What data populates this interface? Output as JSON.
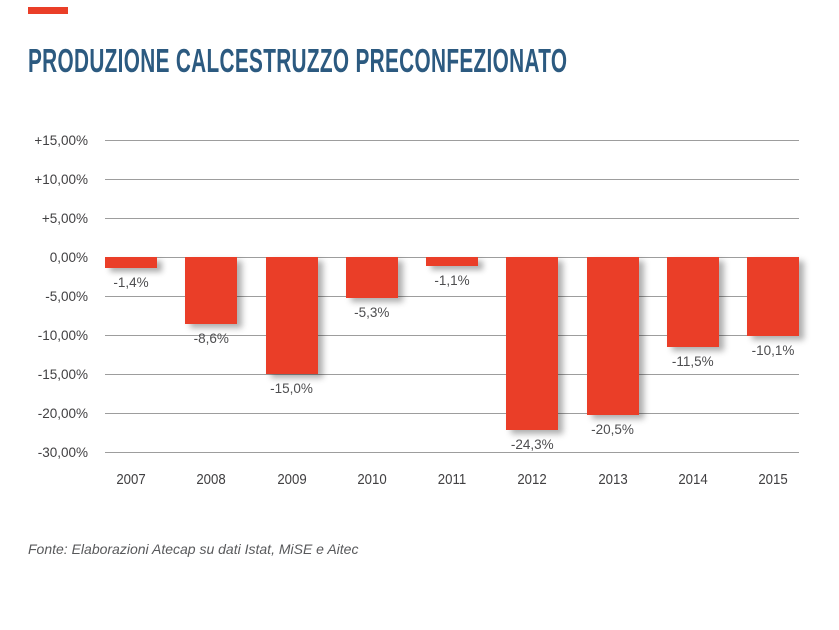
{
  "page": {
    "title": "PRODUZIONE CALCESTRUZZO PRECONFEZIONATO",
    "source_note": "Fonte: Elaborazioni Atecap su dati Istat, MiSE e Aitec",
    "title_color": "#2c5a80",
    "accent_color": "#ea3e28"
  },
  "chart_data": {
    "type": "bar",
    "title": "PRODUZIONE CALCESTRUZZO PRECONFEZIONATO",
    "categories": [
      "2007",
      "2008",
      "2009",
      "2010",
      "2011",
      "2012",
      "2013",
      "2014",
      "2015"
    ],
    "values": [
      -1.4,
      -8.6,
      -15.0,
      -5.3,
      -1.1,
      -24.3,
      -20.5,
      -11.5,
      -10.1
    ],
    "data_labels": [
      "-1,4%",
      "-8,6%",
      "-15,0%",
      "-5,3%",
      "-1,1%",
      "-24,3%",
      "-20,5%",
      "-11,5%",
      "-10,1%"
    ],
    "ytick_labels": [
      "+15,00%",
      "+10,00%",
      "+5,00%",
      "0,00%",
      "-5,00%",
      "-10,00%",
      "-15,00%",
      "-20,00%",
      "-30,00%"
    ],
    "ytick_values": [
      15,
      10,
      5,
      0,
      -5,
      -10,
      -15,
      -20,
      -30
    ],
    "ylim": [
      15,
      -30
    ],
    "xlabel": "",
    "ylabel": "",
    "legend": "none",
    "grid": "horizontal",
    "bar_color": "#ea3e28",
    "gridline_color": "#9d9d9d",
    "axis_text_color": "#414042",
    "label_text_color": "#4d4d4f"
  }
}
